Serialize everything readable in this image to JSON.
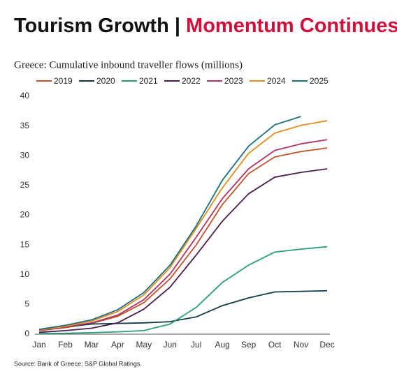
{
  "chart_data": {
    "type": "line",
    "title": "Tourism Growth |",
    "title_highlight": "Momentum Continues",
    "subtitle": "Greece: Cumulative inbound traveller flows (millions)",
    "source": "Source: Bank of Greece; S&P Global Ratings.",
    "categories": [
      "Jan",
      "Feb",
      "Mar",
      "Apr",
      "May",
      "Jun",
      "Jul",
      "Aug",
      "Sep",
      "Oct",
      "Nov",
      "Dec"
    ],
    "ylim": [
      0,
      40
    ],
    "yticks": [
      0,
      5,
      10,
      15,
      20,
      25,
      30,
      35,
      40
    ],
    "grid": false,
    "series": [
      {
        "name": "2019",
        "color": "#c0532b",
        "values": [
          0.6,
          1.1,
          1.8,
          3.0,
          5.3,
          9.3,
          15.0,
          21.8,
          27.0,
          29.8,
          30.7,
          31.3
        ]
      },
      {
        "name": "2020",
        "color": "#0f3a48",
        "values": [
          0.6,
          1.2,
          1.7,
          1.8,
          1.9,
          2.1,
          2.9,
          4.8,
          6.1,
          7.1,
          7.2,
          7.3
        ]
      },
      {
        "name": "2021",
        "color": "#2a9d7c",
        "values": [
          0.1,
          0.15,
          0.25,
          0.4,
          0.6,
          1.7,
          4.5,
          8.7,
          11.6,
          13.8,
          14.3,
          14.7
        ]
      },
      {
        "name": "2022",
        "color": "#4a1c4c",
        "values": [
          0.3,
          0.6,
          1.0,
          1.9,
          4.2,
          7.9,
          13.3,
          19.0,
          23.6,
          26.4,
          27.2,
          27.8
        ]
      },
      {
        "name": "2023",
        "color": "#b23462",
        "values": [
          0.6,
          1.2,
          1.9,
          3.2,
          5.8,
          10.1,
          16.3,
          22.8,
          27.8,
          30.9,
          32.0,
          32.7
        ]
      },
      {
        "name": "2024",
        "color": "#e08e1c",
        "values": [
          0.7,
          1.3,
          2.2,
          3.8,
          6.6,
          11.2,
          17.8,
          24.6,
          30.4,
          33.8,
          35.1,
          35.9
        ]
      },
      {
        "name": "2025",
        "color": "#1b6d80",
        "values": [
          0.8,
          1.5,
          2.4,
          4.1,
          7.0,
          11.6,
          18.2,
          25.9,
          31.6,
          35.2,
          36.6,
          null
        ]
      }
    ]
  }
}
